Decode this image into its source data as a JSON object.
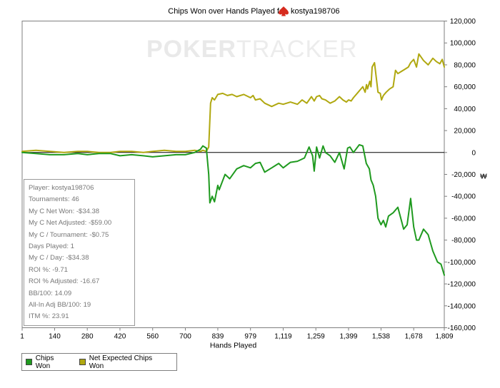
{
  "chart_data": {
    "type": "line",
    "title_prefix": "Chips Won over Hands Played for",
    "title_player": "kostya198706",
    "xlabel": "Hands Played",
    "ylabel": "",
    "xlim": [
      1,
      1809
    ],
    "ylim": [
      -160000,
      120000
    ],
    "x_ticks": [
      1,
      140,
      280,
      420,
      560,
      700,
      839,
      979,
      1119,
      1259,
      1399,
      1538,
      1678,
      1809
    ],
    "x_tick_labels": [
      "1",
      "140",
      "280",
      "420",
      "560",
      "700",
      "839",
      "979",
      "1,119",
      "1,259",
      "1,399",
      "1,538",
      "1,678",
      "1,809"
    ],
    "y_ticks": [
      120000,
      100000,
      80000,
      60000,
      40000,
      20000,
      0,
      -20000,
      -40000,
      -60000,
      -80000,
      -100000,
      -120000,
      -140000,
      -160000
    ],
    "y_tick_labels": [
      "120,000",
      "100,000",
      "80,000",
      "60,000",
      "40,000",
      "20,000",
      "0",
      "-20,000",
      "-40,000",
      "-60,000",
      "-80,000",
      "-100,000",
      "-120,000",
      "-140,000",
      "-160,000"
    ],
    "y_unit_symbol": "₩",
    "grid": false,
    "legend_position": "bottom-left",
    "series": [
      {
        "name": "Chips Won",
        "color": "#1f9a1f",
        "x": [
          1,
          60,
          120,
          180,
          240,
          280,
          330,
          380,
          420,
          470,
          520,
          560,
          610,
          660,
          700,
          740,
          765,
          775,
          790,
          800,
          805,
          815,
          825,
          839,
          845,
          870,
          890,
          920,
          950,
          979,
          1000,
          1020,
          1040,
          1070,
          1100,
          1119,
          1150,
          1180,
          1210,
          1230,
          1245,
          1252,
          1262,
          1275,
          1290,
          1300,
          1320,
          1340,
          1360,
          1380,
          1395,
          1405,
          1420,
          1445,
          1460,
          1475,
          1488,
          1495,
          1505,
          1515,
          1525,
          1538,
          1548,
          1558,
          1570,
          1590,
          1610,
          1625,
          1635,
          1650,
          1665,
          1678,
          1690,
          1700,
          1720,
          1740,
          1760,
          1780,
          1795,
          1809
        ],
        "y": [
          0,
          -1000,
          -2000,
          -2000,
          -1000,
          -2000,
          -1000,
          -1000,
          -3000,
          -2000,
          -3000,
          -4000,
          -3000,
          -2000,
          -2000,
          0,
          3000,
          6000,
          4000,
          -20000,
          -46000,
          -40000,
          -45000,
          -30000,
          -34000,
          -20000,
          -24000,
          -15000,
          -12000,
          -14000,
          -10000,
          -9000,
          -18000,
          -14000,
          -10000,
          -14000,
          -9000,
          -8000,
          -5000,
          5000,
          -3000,
          -17000,
          5000,
          -5000,
          6000,
          0,
          -3000,
          -9000,
          0,
          -15000,
          4000,
          5000,
          0,
          7000,
          6000,
          -10000,
          -15000,
          -25000,
          -30000,
          -40000,
          -60000,
          -66000,
          -62000,
          -68000,
          -58000,
          -55000,
          -50000,
          -62000,
          -70000,
          -66000,
          -42000,
          -68000,
          -80000,
          -80000,
          -70000,
          -75000,
          -90000,
          -100000,
          -102000,
          -112000
        ]
      },
      {
        "name": "Net Expected Chips Won",
        "color": "#b0a810",
        "x": [
          1,
          60,
          120,
          180,
          240,
          280,
          330,
          380,
          420,
          470,
          520,
          560,
          610,
          660,
          700,
          740,
          765,
          775,
          790,
          800,
          808,
          815,
          825,
          839,
          860,
          880,
          900,
          920,
          950,
          979,
          990,
          1000,
          1020,
          1040,
          1070,
          1100,
          1119,
          1150,
          1180,
          1200,
          1220,
          1240,
          1252,
          1262,
          1275,
          1285,
          1300,
          1320,
          1340,
          1360,
          1375,
          1390,
          1399,
          1410,
          1420,
          1440,
          1460,
          1470,
          1476,
          1480,
          1490,
          1495,
          1500,
          1510,
          1525,
          1535,
          1540,
          1548,
          1560,
          1575,
          1590,
          1600,
          1610,
          1625,
          1640,
          1655,
          1665,
          1678,
          1690,
          1700,
          1720,
          1740,
          1760,
          1775,
          1790,
          1800,
          1809
        ],
        "y": [
          1000,
          2000,
          1000,
          0,
          1000,
          1000,
          0,
          0,
          1000,
          1000,
          0,
          1000,
          2000,
          1000,
          1000,
          2000,
          1000,
          2000,
          1000,
          5000,
          45000,
          50000,
          48000,
          53000,
          54000,
          52000,
          53000,
          51000,
          53000,
          50000,
          52000,
          48000,
          49000,
          45000,
          42000,
          45000,
          44000,
          46000,
          44000,
          48000,
          45000,
          51000,
          47000,
          51000,
          52000,
          49000,
          48000,
          45000,
          47000,
          51000,
          48000,
          46000,
          48000,
          47000,
          50000,
          55000,
          60000,
          55000,
          62000,
          58000,
          65000,
          60000,
          78000,
          82000,
          55000,
          54000,
          48000,
          52000,
          55000,
          58000,
          60000,
          75000,
          72000,
          74000,
          76000,
          78000,
          82000,
          85000,
          78000,
          90000,
          84000,
          80000,
          86000,
          83000,
          81000,
          85000,
          78000
        ]
      }
    ]
  },
  "stats": {
    "lines": [
      "Player: kostya198706",
      "Tournaments: 46",
      "My C Net Won: -$34.38",
      "My C Net Adjusted: -$59.00",
      "My C / Tournament: -$0.75",
      "Days Played: 1",
      "My C / Day: -$34.38",
      "ROI %: -9.71",
      "ROI % Adjusted: -16.67",
      "BB/100: 14.09",
      "All-In Adj BB/100: 19",
      "ITM %: 23.91"
    ]
  },
  "watermark": {
    "part1": "POKER",
    "part2": "TRACKER"
  },
  "colors": {
    "zero_line": "#000000",
    "frame": "#7f7f7f",
    "spade": "#d62b1e"
  }
}
